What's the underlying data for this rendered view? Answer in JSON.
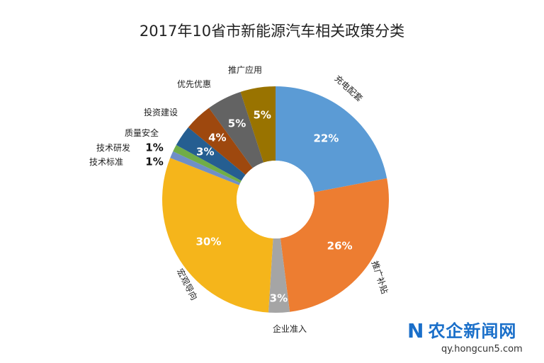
{
  "chart_data": {
    "type": "pie",
    "variant": "donut",
    "title": "2017年10省市新能源汽车相关政策分类",
    "categories": [
      "充电配套",
      "推广补贴",
      "企业准入",
      "宏观导向",
      "技术标准",
      "技术研发",
      "质量安全",
      "投资建设",
      "优先优惠",
      "推广应用"
    ],
    "values": [
      22,
      26,
      3,
      30,
      1,
      1,
      3,
      4,
      5,
      5
    ],
    "labels": [
      "22%",
      "26%",
      "3%",
      "30%",
      "1%",
      "1%",
      "3%",
      "4%",
      "5%",
      "5%"
    ],
    "colors": [
      "#5b9bd5",
      "#ed7d31",
      "#a5a5a5",
      "#f5b51b",
      "#6f8fc7",
      "#70ad47",
      "#255e91",
      "#9e480e",
      "#636363",
      "#997300"
    ],
    "start": "12 o'clock",
    "direction": "clockwise",
    "legend": "none"
  },
  "watermark": {
    "brand": "农企新闻网",
    "url": "qy.hongcun5.com",
    "mark": "N"
  }
}
